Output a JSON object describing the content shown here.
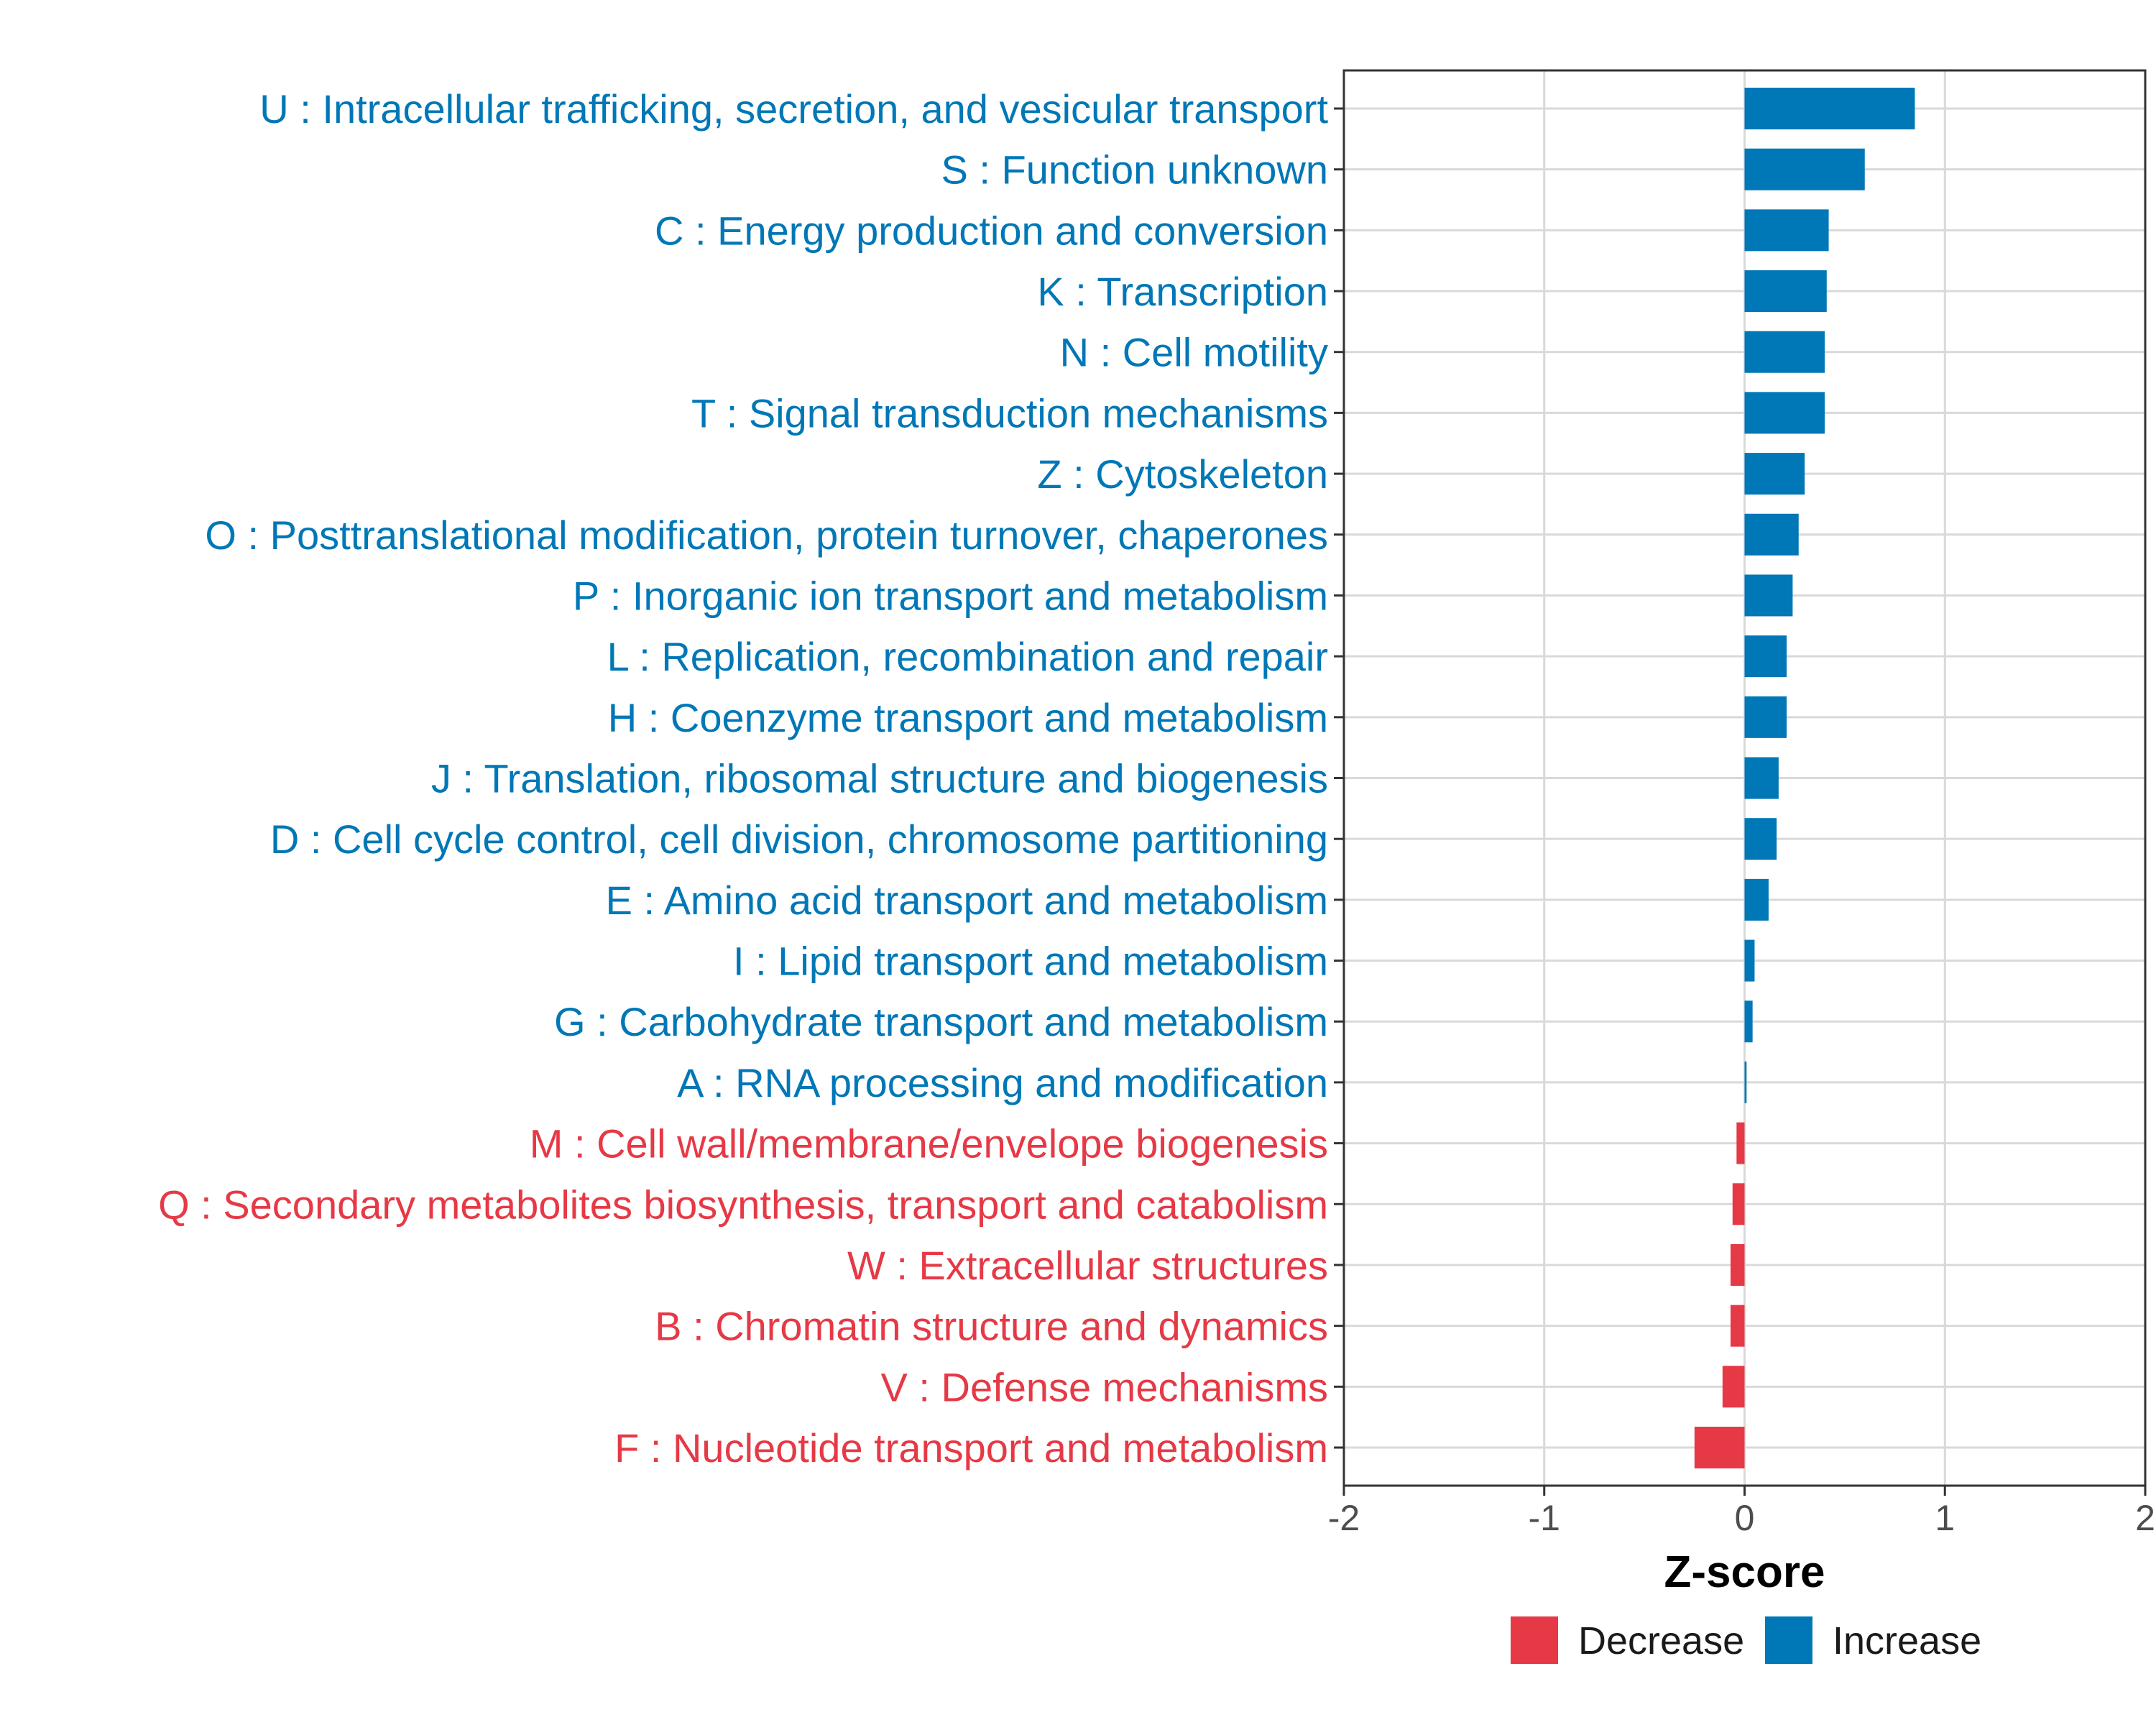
{
  "chart_data": {
    "type": "bar",
    "orientation": "horizontal",
    "categories": [
      "U : Intracellular trafficking, secretion, and vesicular transport",
      "S : Function unknown",
      "C : Energy production and conversion",
      "K : Transcription",
      "N : Cell motility",
      "T : Signal transduction mechanisms",
      "Z : Cytoskeleton",
      "O : Posttranslational modification, protein turnover, chaperones",
      "P : Inorganic ion transport and metabolism",
      "L : Replication, recombination and repair",
      "H : Coenzyme transport and metabolism",
      "J : Translation, ribosomal structure and biogenesis",
      "D : Cell cycle control, cell division, chromosome partitioning",
      "E : Amino acid transport and metabolism",
      "I : Lipid transport and metabolism",
      "G : Carbohydrate transport and metabolism",
      "A : RNA processing and modification",
      "M : Cell wall/membrane/envelope biogenesis",
      "Q : Secondary metabolites biosynthesis, transport and catabolism",
      "W : Extracellular structures",
      "B : Chromatin structure and dynamics",
      "V : Defense mechanisms",
      "F : Nucleotide transport and metabolism"
    ],
    "values": [
      0.85,
      0.6,
      0.42,
      0.41,
      0.4,
      0.4,
      0.3,
      0.27,
      0.24,
      0.21,
      0.21,
      0.17,
      0.16,
      0.12,
      0.05,
      0.04,
      0.01,
      -0.04,
      -0.06,
      -0.07,
      -0.07,
      -0.11,
      -0.25
    ],
    "groups": [
      "Increase",
      "Increase",
      "Increase",
      "Increase",
      "Increase",
      "Increase",
      "Increase",
      "Increase",
      "Increase",
      "Increase",
      "Increase",
      "Increase",
      "Increase",
      "Increase",
      "Increase",
      "Increase",
      "Increase",
      "Decrease",
      "Decrease",
      "Decrease",
      "Decrease",
      "Decrease",
      "Decrease"
    ],
    "xlabel": "Z-score",
    "ylabel": "",
    "xlim": [
      -2,
      2
    ],
    "xticks": [
      -2,
      -1,
      0,
      1,
      2
    ],
    "grid": true,
    "legend": {
      "position": "bottom",
      "entries": [
        {
          "label": "Decrease",
          "color": "#E63946"
        },
        {
          "label": "Increase",
          "color": "#0077B6"
        }
      ]
    },
    "colors": {
      "Increase": "#0077B6",
      "Decrease": "#E63946"
    }
  }
}
